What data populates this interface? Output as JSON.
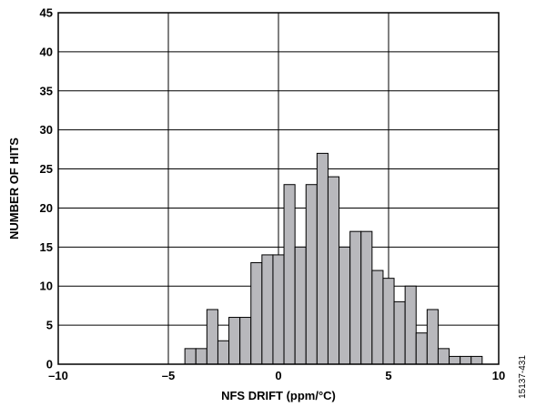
{
  "figure_id": "15137-431",
  "chart_data": {
    "type": "bar",
    "subtype": "histogram",
    "xlabel": "NFS DRIFT (ppm/°C)",
    "ylabel": "NUMBER OF HITS",
    "xlim": [
      -10,
      10
    ],
    "ylim": [
      0,
      45
    ],
    "xticks": [
      -10,
      -5,
      0,
      5,
      10
    ],
    "xtick_labels": [
      "–10",
      "–5",
      "0",
      "5",
      "10"
    ],
    "yticks": [
      0,
      5,
      10,
      15,
      20,
      25,
      30,
      35,
      40,
      45
    ],
    "grid": true,
    "bin_width": 0.5,
    "bar_color": "#b8b8bc",
    "bins": [
      {
        "x0": -4.25,
        "count": 2
      },
      {
        "x0": -3.75,
        "count": 2
      },
      {
        "x0": -3.25,
        "count": 7
      },
      {
        "x0": -2.75,
        "count": 3
      },
      {
        "x0": -2.25,
        "count": 6
      },
      {
        "x0": -1.75,
        "count": 6
      },
      {
        "x0": -1.25,
        "count": 13
      },
      {
        "x0": -0.75,
        "count": 14
      },
      {
        "x0": -0.25,
        "count": 14
      },
      {
        "x0": 0.25,
        "count": 23
      },
      {
        "x0": 0.75,
        "count": 15
      },
      {
        "x0": 1.25,
        "count": 23
      },
      {
        "x0": 1.75,
        "count": 27
      },
      {
        "x0": 2.25,
        "count": 24
      },
      {
        "x0": 2.75,
        "count": 15
      },
      {
        "x0": 3.25,
        "count": 17
      },
      {
        "x0": 3.75,
        "count": 17
      },
      {
        "x0": 4.25,
        "count": 12
      },
      {
        "x0": 4.75,
        "count": 11
      },
      {
        "x0": 5.25,
        "count": 8
      },
      {
        "x0": 5.75,
        "count": 10
      },
      {
        "x0": 6.25,
        "count": 4
      },
      {
        "x0": 6.75,
        "count": 7
      },
      {
        "x0": 7.25,
        "count": 2
      },
      {
        "x0": 7.75,
        "count": 1
      },
      {
        "x0": 8.25,
        "count": 1
      },
      {
        "x0": 8.75,
        "count": 1
      }
    ]
  }
}
